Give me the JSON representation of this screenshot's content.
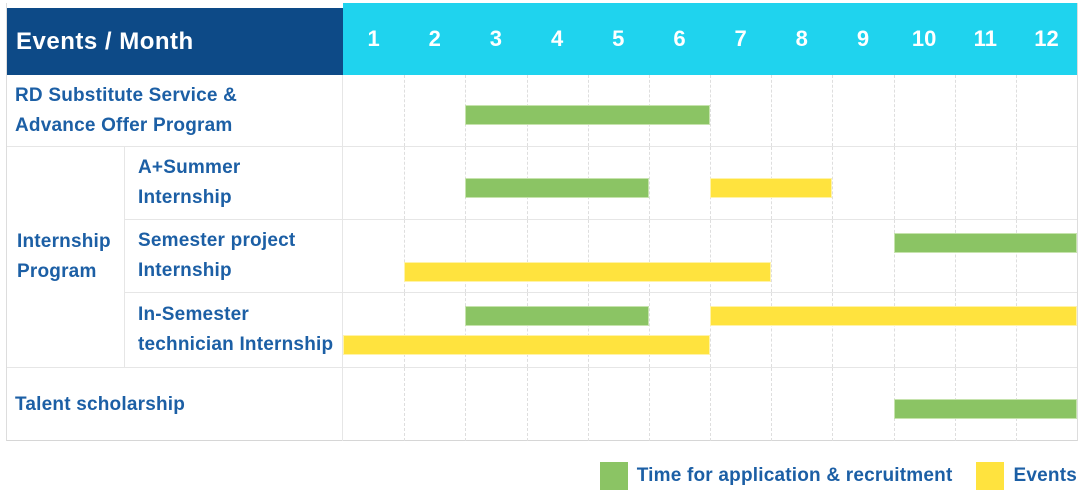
{
  "header": {
    "title": "Events / Month"
  },
  "palette": {
    "header_navy": "#0d4a87",
    "header_cyan": "#1fd3ee",
    "label_text_blue": "#1c5fa5",
    "bar_green": "#8bc464",
    "bar_yellow": "#ffe33e",
    "grid_line": "#e6e6e6",
    "column_dash_line": "#dedede"
  },
  "chart_data": {
    "type": "bar",
    "subtype": "gantt-schedule",
    "title": "Events / Month",
    "xlabel": "Month",
    "x_range": [
      1,
      12
    ],
    "months": [
      "1",
      "2",
      "3",
      "4",
      "5",
      "6",
      "7",
      "8",
      "9",
      "10",
      "11",
      "12"
    ],
    "legend_position": "bottom-right",
    "legend": [
      {
        "color_key": "green",
        "color": "#8bc464",
        "label": "Time for application & recruitment"
      },
      {
        "color_key": "yellow",
        "color": "#ffe33e",
        "label": "Events"
      }
    ],
    "group_label": {
      "text": "Internship Program",
      "lines": [
        "Internship",
        "Program"
      ],
      "spans_row_indices": [
        1,
        2,
        3
      ]
    },
    "rows": [
      {
        "label": "RD Substitute Service & Advance Offer Program",
        "label_lines": [
          "RD Substitute Service &",
          "Advance Offer Program"
        ],
        "group": null,
        "lanes": [
          [
            {
              "color": "green",
              "start_month": 3,
              "end_month": 6
            }
          ]
        ]
      },
      {
        "label": "A+Summer Internship",
        "label_lines": [
          "A+Summer",
          "Internship"
        ],
        "group": "Internship Program",
        "lanes": [
          [
            {
              "color": "green",
              "start_month": 3,
              "end_month": 5
            },
            {
              "color": "yellow",
              "start_month": 7,
              "end_month": 8
            }
          ]
        ]
      },
      {
        "label": "Semester project Internship",
        "label_lines": [
          "Semester project",
          "Internship"
        ],
        "group": "Internship Program",
        "lanes": [
          [
            {
              "color": "green",
              "start_month": 10,
              "end_month": 12
            }
          ],
          [
            {
              "color": "yellow",
              "start_month": 2,
              "end_month": 7
            }
          ]
        ]
      },
      {
        "label": "In-Semester technician Internship",
        "label_lines": [
          "In-Semester",
          "technician Internship"
        ],
        "group": "Internship Program",
        "lanes": [
          [
            {
              "color": "green",
              "start_month": 3,
              "end_month": 5
            },
            {
              "color": "yellow",
              "start_month": 7,
              "end_month": 12
            }
          ],
          [
            {
              "color": "yellow",
              "start_month": 1,
              "end_month": 6
            }
          ]
        ]
      },
      {
        "label": "Talent scholarship",
        "label_lines": [
          "Talent scholarship"
        ],
        "group": null,
        "lanes": [
          [
            {
              "color": "green",
              "start_month": 10,
              "end_month": 12
            }
          ]
        ]
      }
    ]
  }
}
